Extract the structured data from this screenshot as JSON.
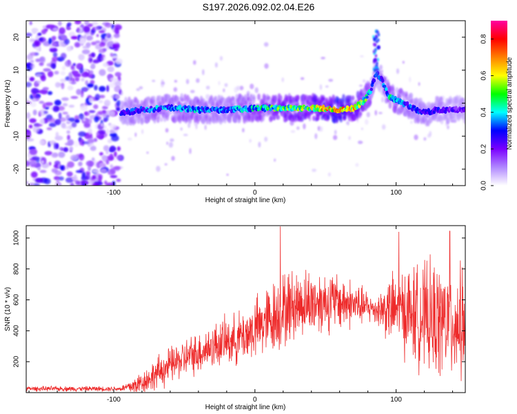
{
  "title": "S197.2026.092.02.04.E26",
  "chart_data": [
    {
      "type": "heatmap",
      "name": "spectrogram",
      "xlabel": "Height of straight line (km)",
      "ylabel": "Frequency (Hz)",
      "xlim": [
        -162,
        149
      ],
      "ylim": [
        -25,
        25
      ],
      "xticks": [
        -100,
        0,
        100
      ],
      "yticks": [
        -20,
        -10,
        0,
        10,
        20
      ],
      "colorbar": {
        "label": "Normalized spectral amplitude",
        "range": [
          0.0,
          0.9
        ],
        "ticks": [
          0.0,
          0.2,
          0.4,
          0.6,
          0.8
        ],
        "colors": [
          "#ffffff",
          "#b088ff",
          "#7a00ff",
          "#0000ff",
          "#00ffff",
          "#00ff00",
          "#ffff00",
          "#ff8000",
          "#ff0000",
          "#ff00a0"
        ]
      },
      "noise_region_x": [
        -162,
        -95
      ],
      "ridge": {
        "x": [
          -95,
          -80,
          -60,
          -40,
          -20,
          0,
          20,
          40,
          60,
          70,
          78,
          82,
          86,
          90,
          95,
          100,
          110,
          120,
          130,
          140,
          149
        ],
        "freq": [
          -3,
          -2,
          -1.5,
          -2,
          -2,
          -1.5,
          -1.5,
          -1.5,
          -2,
          -1.5,
          1,
          4,
          9,
          7,
          2,
          1,
          -1,
          -3,
          -2,
          -2,
          -2
        ],
        "amplitude": [
          0.3,
          0.35,
          0.4,
          0.4,
          0.35,
          0.45,
          0.55,
          0.6,
          0.75,
          0.7,
          0.55,
          0.4,
          0.3,
          0.35,
          0.45,
          0.4,
          0.35,
          0.3,
          0.3,
          0.25,
          0.25
        ]
      }
    },
    {
      "type": "line",
      "name": "snr",
      "xlabel": "Height of straight line (km)",
      "ylabel": "SNR (10 * v/v)",
      "xlim": [
        -162,
        149
      ],
      "ylim": [
        0,
        1080
      ],
      "xticks": [
        -100,
        0,
        100
      ],
      "yticks": [
        200,
        400,
        600,
        800,
        1000
      ],
      "color": "#ee2b2b",
      "envelope": {
        "x": [
          -162,
          -95,
          -85,
          -75,
          -65,
          -55,
          -45,
          -35,
          -25,
          -15,
          -5,
          5,
          15,
          25,
          35,
          45,
          55,
          65,
          75,
          85,
          95,
          105,
          115,
          125,
          135,
          149
        ],
        "mean": [
          25,
          25,
          45,
          90,
          150,
          200,
          240,
          280,
          320,
          340,
          380,
          440,
          500,
          560,
          580,
          590,
          590,
          580,
          560,
          540,
          540,
          530,
          500,
          470,
          460,
          450
        ],
        "spread": [
          15,
          15,
          60,
          80,
          110,
          110,
          120,
          130,
          140,
          150,
          170,
          200,
          230,
          220,
          200,
          200,
          180,
          160,
          120,
          80,
          200,
          260,
          300,
          340,
          350,
          330
        ]
      },
      "peaks": [
        {
          "x": 18,
          "y": 1075
        },
        {
          "x": 102,
          "y": 1040
        },
        {
          "x": 138,
          "y": 1045
        }
      ]
    }
  ]
}
